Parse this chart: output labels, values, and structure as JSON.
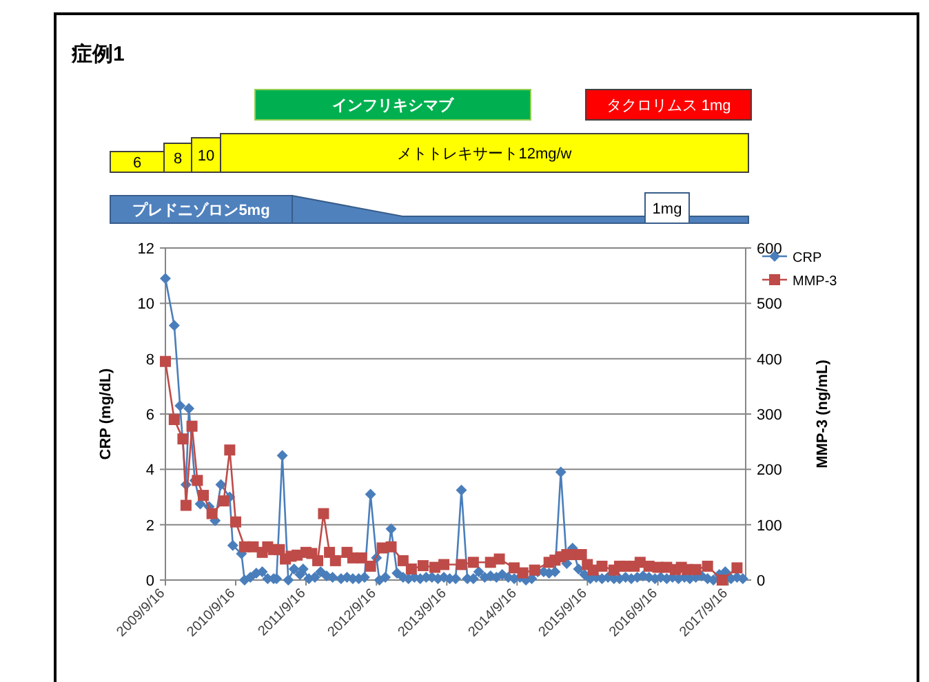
{
  "chart_data": {
    "type": "line",
    "title": "症例1",
    "ylabel": "CRP (mg/dL)",
    "y2label": "MMP-3 (ng/mL)",
    "xlim": [
      "2009-09-16",
      "2017-12-16"
    ],
    "xticks": [
      {
        "value": "2009-09-16",
        "label": "2009/9/16"
      },
      {
        "value": "2010-09-16",
        "label": "2010/9/16"
      },
      {
        "value": "2011-09-16",
        "label": "2011/9/16"
      },
      {
        "value": "2012-09-16",
        "label": "2012/9/16"
      },
      {
        "value": "2013-09-16",
        "label": "2013/9/16"
      },
      {
        "value": "2014-09-16",
        "label": "2014/9/16"
      },
      {
        "value": "2015-09-16",
        "label": "2015/9/16"
      },
      {
        "value": "2016-09-16",
        "label": "2016/9/16"
      },
      {
        "value": "2017-09-16",
        "label": "2017/9/16"
      }
    ],
    "ylim": [
      0,
      12
    ],
    "yticks": [
      0,
      2,
      4,
      6,
      8,
      10,
      12
    ],
    "y2lim": [
      0,
      600
    ],
    "y2ticks": [
      0,
      100,
      200,
      300,
      400,
      500,
      600
    ],
    "grid": "y",
    "legend": "top right",
    "annotations": [
      "インフリキシマブ",
      "タクロリムス 1mg",
      "6",
      "8",
      "10",
      "メトトレキサート12mg/w",
      "プレドニゾロン5mg",
      "1mg"
    ],
    "series": [
      {
        "name": "CRP",
        "color": "#4a7ebb",
        "marker": "diamond",
        "x": [
          "2009-09-16",
          "2009-11-01",
          "2009-12-01",
          "2010-01-01",
          "2010-01-16",
          "2010-02-16",
          "2010-03-16",
          "2010-05-01",
          "2010-06-01",
          "2010-07-01",
          "2010-08-16",
          "2010-09-01",
          "2010-10-16",
          "2010-11-01",
          "2010-12-01",
          "2011-01-01",
          "2011-02-01",
          "2011-03-01",
          "2011-04-01",
          "2011-04-16",
          "2011-05-16",
          "2011-06-16",
          "2011-07-16",
          "2011-08-16",
          "2011-09-01",
          "2011-10-01",
          "2011-11-01",
          "2011-12-01",
          "2012-01-01",
          "2012-02-01",
          "2012-03-16",
          "2012-04-16",
          "2012-05-16",
          "2012-06-16",
          "2012-07-16",
          "2012-08-16",
          "2012-09-16",
          "2012-10-01",
          "2012-11-01",
          "2012-12-01",
          "2013-01-01",
          "2013-02-01",
          "2013-03-01",
          "2013-04-01",
          "2013-05-01",
          "2013-06-01",
          "2013-07-01",
          "2013-08-01",
          "2013-09-01",
          "2013-10-01",
          "2013-11-01",
          "2013-12-01",
          "2014-01-01",
          "2014-02-01",
          "2014-03-01",
          "2014-04-01",
          "2014-05-01",
          "2014-06-01",
          "2014-07-01",
          "2014-08-01",
          "2014-09-01",
          "2014-10-01",
          "2014-11-01",
          "2014-12-01",
          "2015-01-01",
          "2015-02-01",
          "2015-03-01",
          "2015-04-01",
          "2015-05-01",
          "2015-06-01",
          "2015-07-01",
          "2015-08-01",
          "2015-09-01",
          "2015-10-01",
          "2015-11-01",
          "2015-12-01",
          "2016-01-01",
          "2016-02-01",
          "2016-03-01",
          "2016-04-01",
          "2016-05-01",
          "2016-06-01",
          "2016-07-01",
          "2016-08-01",
          "2016-09-01",
          "2016-10-01",
          "2016-11-01",
          "2016-12-01",
          "2017-01-01",
          "2017-02-01",
          "2017-03-01",
          "2017-04-01",
          "2017-05-01",
          "2017-06-01",
          "2017-07-01",
          "2017-08-01",
          "2017-09-01",
          "2017-10-01",
          "2017-11-01",
          "2017-12-01"
        ],
        "values": [
          10.9,
          9.2,
          6.3,
          3.45,
          6.2,
          3.6,
          2.75,
          2.65,
          2.15,
          3.45,
          3.0,
          1.25,
          0.95,
          0.0,
          0.1,
          0.25,
          0.3,
          0.05,
          0.05,
          0.05,
          4.5,
          0.0,
          0.4,
          0.2,
          0.4,
          0.05,
          0.1,
          0.3,
          0.15,
          0.1,
          0.05,
          0.1,
          0.05,
          0.05,
          0.1,
          3.1,
          0.8,
          0.0,
          0.1,
          1.85,
          0.25,
          0.1,
          0.05,
          0.1,
          0.05,
          0.1,
          0.1,
          0.05,
          0.1,
          0.05,
          0.05,
          3.25,
          0.05,
          0.05,
          0.3,
          0.1,
          0.15,
          0.1,
          0.2,
          0.1,
          0.05,
          0.1,
          0.0,
          0.05,
          0.3,
          0.3,
          0.25,
          0.3,
          3.9,
          0.6,
          1.15,
          0.4,
          0.2,
          0.05,
          0.1,
          0.05,
          0.1,
          0.05,
          0.05,
          0.1,
          0.05,
          0.1,
          0.15,
          0.1,
          0.05,
          0.1,
          0.05,
          0.1,
          0.05,
          0.1,
          0.05,
          0.1,
          0.15,
          0.05,
          0.0,
          0.2,
          0.3,
          0.05,
          0.1,
          0.05
        ]
      },
      {
        "name": "MMP-3",
        "color": "#be4b48",
        "marker": "square",
        "axis": "y2",
        "x": [
          "2009-09-16",
          "2009-11-01",
          "2009-12-16",
          "2010-01-01",
          "2010-02-01",
          "2010-03-01",
          "2010-04-01",
          "2010-05-16",
          "2010-07-16",
          "2010-08-16",
          "2010-09-16",
          "2010-11-01",
          "2010-12-16",
          "2011-02-01",
          "2011-03-01",
          "2011-04-01",
          "2011-05-01",
          "2011-06-01",
          "2011-07-01",
          "2011-08-01",
          "2011-09-16",
          "2011-10-16",
          "2011-11-16",
          "2011-12-16",
          "2012-01-16",
          "2012-02-16",
          "2012-04-16",
          "2012-05-16",
          "2012-07-01",
          "2012-08-16",
          "2012-10-16",
          "2012-12-01",
          "2013-02-01",
          "2013-03-16",
          "2013-05-16",
          "2013-07-16",
          "2013-09-01",
          "2013-12-01",
          "2014-02-01",
          "2014-05-01",
          "2014-06-16",
          "2014-09-01",
          "2014-10-16",
          "2014-12-16",
          "2015-03-01",
          "2015-04-01",
          "2015-05-01",
          "2015-06-01",
          "2015-07-16",
          "2015-08-16",
          "2015-09-16",
          "2015-10-16",
          "2015-12-01",
          "2016-02-01",
          "2016-03-01",
          "2016-04-01",
          "2016-05-16",
          "2016-06-16",
          "2016-08-01",
          "2016-09-16",
          "2016-11-01",
          "2016-12-16",
          "2017-01-16",
          "2017-02-16",
          "2017-04-01",
          "2017-06-01",
          "2017-08-16",
          "2017-11-01"
        ],
        "values": [
          395,
          290,
          255,
          135,
          278,
          180,
          153,
          120,
          143,
          235,
          105,
          60,
          60,
          50,
          60,
          55,
          55,
          38,
          43,
          45,
          50,
          48,
          35,
          120,
          50,
          35,
          50,
          40,
          40,
          25,
          58,
          60,
          35,
          20,
          26,
          23,
          28,
          28,
          32,
          32,
          38,
          22,
          13,
          18,
          32,
          36,
          42,
          46,
          46,
          46,
          28,
          18,
          25,
          18,
          25,
          25,
          25,
          32,
          25,
          23,
          23,
          19,
          23,
          19,
          19,
          25,
          0,
          22
        ]
      }
    ]
  }
}
